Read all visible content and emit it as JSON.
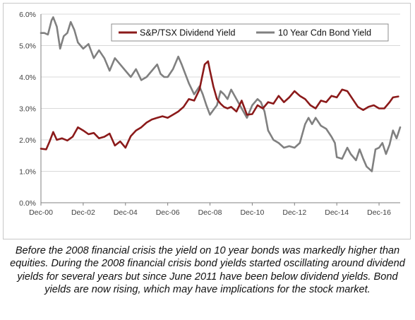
{
  "caption": "Before the 2008 financial crisis the yield on 10 year bonds was markedly higher than equities. During the 2008 financial crisis bond yields started oscillating around dividend yields for several years but since June 2011 have been below dividend yields. Bond yields are now rising, which may have implications for the stock market.",
  "chart_data": {
    "type": "line",
    "title": "",
    "xlabel": "",
    "ylabel": "",
    "x_range": [
      "2000-12",
      "2017-12"
    ],
    "x_tick_labels": [
      "Dec-00",
      "Dec-02",
      "Dec-04",
      "Dec-06",
      "Dec-08",
      "Dec-10",
      "Dec-12",
      "Dec-14",
      "Dec-16"
    ],
    "x_tick_positions": [
      2000.92,
      2002.92,
      2004.92,
      2006.92,
      2008.92,
      2010.92,
      2012.92,
      2014.92,
      2016.92
    ],
    "ylim": [
      0,
      6
    ],
    "y_tick_labels": [
      "0.0%",
      "1.0%",
      "2.0%",
      "3.0%",
      "4.0%",
      "5.0%",
      "6.0%"
    ],
    "y_ticks": [
      0,
      1,
      2,
      3,
      4,
      5,
      6
    ],
    "y_unit": "%",
    "grid": "horizontal",
    "legend_position": "top-right",
    "series": [
      {
        "name": "S&P/TSX Dividend Yield",
        "color": "#8b1a1a",
        "points": [
          [
            2000.92,
            1.72
          ],
          [
            2001.17,
            1.7
          ],
          [
            2001.33,
            1.95
          ],
          [
            2001.5,
            2.25
          ],
          [
            2001.67,
            2.0
          ],
          [
            2001.92,
            2.05
          ],
          [
            2002.17,
            1.98
          ],
          [
            2002.42,
            2.1
          ],
          [
            2002.67,
            2.4
          ],
          [
            2002.92,
            2.3
          ],
          [
            2003.17,
            2.18
          ],
          [
            2003.42,
            2.22
          ],
          [
            2003.67,
            2.05
          ],
          [
            2003.92,
            2.1
          ],
          [
            2004.17,
            2.2
          ],
          [
            2004.42,
            1.82
          ],
          [
            2004.67,
            1.95
          ],
          [
            2004.92,
            1.75
          ],
          [
            2005.17,
            2.12
          ],
          [
            2005.42,
            2.3
          ],
          [
            2005.67,
            2.4
          ],
          [
            2005.92,
            2.55
          ],
          [
            2006.17,
            2.65
          ],
          [
            2006.42,
            2.7
          ],
          [
            2006.67,
            2.75
          ],
          [
            2006.92,
            2.7
          ],
          [
            2007.17,
            2.8
          ],
          [
            2007.42,
            2.9
          ],
          [
            2007.67,
            3.05
          ],
          [
            2007.92,
            3.3
          ],
          [
            2008.17,
            3.25
          ],
          [
            2008.42,
            3.6
          ],
          [
            2008.67,
            4.4
          ],
          [
            2008.83,
            4.5
          ],
          [
            2008.92,
            4.2
          ],
          [
            2009.08,
            3.7
          ],
          [
            2009.25,
            3.3
          ],
          [
            2009.42,
            3.15
          ],
          [
            2009.58,
            3.05
          ],
          [
            2009.75,
            3.0
          ],
          [
            2009.92,
            3.05
          ],
          [
            2010.17,
            2.9
          ],
          [
            2010.42,
            3.25
          ],
          [
            2010.67,
            2.8
          ],
          [
            2010.92,
            2.82
          ],
          [
            2011.17,
            3.1
          ],
          [
            2011.42,
            3.0
          ],
          [
            2011.67,
            3.2
          ],
          [
            2011.92,
            3.15
          ],
          [
            2012.17,
            3.4
          ],
          [
            2012.42,
            3.2
          ],
          [
            2012.67,
            3.35
          ],
          [
            2012.92,
            3.55
          ],
          [
            2013.17,
            3.4
          ],
          [
            2013.42,
            3.3
          ],
          [
            2013.67,
            3.1
          ],
          [
            2013.92,
            3.0
          ],
          [
            2014.17,
            3.25
          ],
          [
            2014.42,
            3.2
          ],
          [
            2014.67,
            3.4
          ],
          [
            2014.92,
            3.35
          ],
          [
            2015.17,
            3.6
          ],
          [
            2015.42,
            3.55
          ],
          [
            2015.67,
            3.3
          ],
          [
            2015.92,
            3.05
          ],
          [
            2016.17,
            2.95
          ],
          [
            2016.42,
            3.05
          ],
          [
            2016.67,
            3.1
          ],
          [
            2016.92,
            3.0
          ],
          [
            2017.17,
            3.0
          ],
          [
            2017.42,
            3.2
          ],
          [
            2017.58,
            3.35
          ],
          [
            2017.83,
            3.38
          ]
        ]
      },
      {
        "name": "10 Year Cdn Bond Yield",
        "color": "#808080",
        "points": [
          [
            2000.92,
            5.4
          ],
          [
            2001.08,
            5.4
          ],
          [
            2001.25,
            5.35
          ],
          [
            2001.42,
            5.8
          ],
          [
            2001.5,
            5.9
          ],
          [
            2001.67,
            5.6
          ],
          [
            2001.83,
            4.9
          ],
          [
            2002.0,
            5.3
          ],
          [
            2002.17,
            5.4
          ],
          [
            2002.33,
            5.75
          ],
          [
            2002.5,
            5.5
          ],
          [
            2002.67,
            5.1
          ],
          [
            2002.92,
            4.9
          ],
          [
            2003.17,
            5.05
          ],
          [
            2003.42,
            4.6
          ],
          [
            2003.67,
            4.85
          ],
          [
            2003.92,
            4.6
          ],
          [
            2004.17,
            4.2
          ],
          [
            2004.42,
            4.6
          ],
          [
            2004.67,
            4.4
          ],
          [
            2004.92,
            4.2
          ],
          [
            2005.17,
            4.0
          ],
          [
            2005.42,
            4.25
          ],
          [
            2005.67,
            3.9
          ],
          [
            2005.92,
            4.0
          ],
          [
            2006.17,
            4.2
          ],
          [
            2006.42,
            4.4
          ],
          [
            2006.58,
            4.1
          ],
          [
            2006.75,
            4.0
          ],
          [
            2006.92,
            4.0
          ],
          [
            2007.17,
            4.25
          ],
          [
            2007.42,
            4.65
          ],
          [
            2007.58,
            4.4
          ],
          [
            2007.75,
            4.1
          ],
          [
            2007.92,
            3.8
          ],
          [
            2008.17,
            3.45
          ],
          [
            2008.42,
            3.7
          ],
          [
            2008.58,
            3.45
          ],
          [
            2008.75,
            3.1
          ],
          [
            2008.92,
            2.8
          ],
          [
            2009.08,
            2.95
          ],
          [
            2009.25,
            3.1
          ],
          [
            2009.42,
            3.55
          ],
          [
            2009.58,
            3.45
          ],
          [
            2009.75,
            3.3
          ],
          [
            2009.92,
            3.6
          ],
          [
            2010.17,
            3.3
          ],
          [
            2010.42,
            3.0
          ],
          [
            2010.67,
            2.7
          ],
          [
            2010.92,
            3.1
          ],
          [
            2011.17,
            3.3
          ],
          [
            2011.33,
            3.2
          ],
          [
            2011.5,
            2.9
          ],
          [
            2011.67,
            2.3
          ],
          [
            2011.92,
            2.0
          ],
          [
            2012.17,
            1.9
          ],
          [
            2012.42,
            1.75
          ],
          [
            2012.67,
            1.8
          ],
          [
            2012.92,
            1.75
          ],
          [
            2013.17,
            1.9
          ],
          [
            2013.42,
            2.5
          ],
          [
            2013.58,
            2.7
          ],
          [
            2013.75,
            2.5
          ],
          [
            2013.92,
            2.7
          ],
          [
            2014.17,
            2.45
          ],
          [
            2014.42,
            2.35
          ],
          [
            2014.67,
            2.1
          ],
          [
            2014.83,
            1.9
          ],
          [
            2014.92,
            1.45
          ],
          [
            2015.17,
            1.4
          ],
          [
            2015.42,
            1.75
          ],
          [
            2015.58,
            1.55
          ],
          [
            2015.83,
            1.35
          ],
          [
            2016.0,
            1.7
          ],
          [
            2016.17,
            1.4
          ],
          [
            2016.33,
            1.15
          ],
          [
            2016.5,
            1.05
          ],
          [
            2016.58,
            1.0
          ],
          [
            2016.75,
            1.7
          ],
          [
            2016.92,
            1.75
          ],
          [
            2017.08,
            1.9
          ],
          [
            2017.25,
            1.55
          ],
          [
            2017.42,
            1.85
          ],
          [
            2017.58,
            2.3
          ],
          [
            2017.75,
            2.05
          ],
          [
            2017.92,
            2.4
          ]
        ]
      }
    ]
  }
}
